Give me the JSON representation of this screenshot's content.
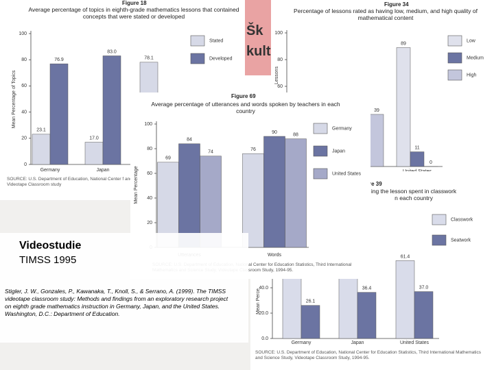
{
  "slide": {
    "heading": "Videostudie",
    "subheading": "TIMSS 1995",
    "citation": "Stigler, J. W., Gonzales, P., Kawanaka, T., Knoll, S., & Serrano, A. (1999). The TIMSS videotape classroom study: Methods and findings from an exploratory research project on eighth grade mathematics instruction in Germany, Japan, and the United States. Washington, D.C.: Department of Education.",
    "logo": [
      "Šk",
      "kult"
    ]
  },
  "chart_data": [
    {
      "type": "bar",
      "figure": "Figure 18",
      "title": "Average percentage of topics in eighth-grade mathematics lessons that contained concepts that were stated or developed",
      "y_label": "Mean Percentage of Topics",
      "categories": [
        "Germany",
        "Japan",
        null
      ],
      "series": [
        {
          "name": "Stated",
          "color": "#d6d9e7",
          "values": [
            23.1,
            17.0,
            78.1
          ],
          "value_labels": [
            "23.1",
            "17.0",
            "78.1"
          ]
        },
        {
          "name": "Developed",
          "color": "#6b74a2",
          "values": [
            76.9,
            83.0,
            null
          ],
          "value_labels": [
            "76.9",
            "83.0",
            null
          ]
        }
      ],
      "ylim": [
        0,
        100
      ],
      "yticks": [
        0,
        20,
        40,
        60,
        80,
        100
      ],
      "source": "SOURCE: U.S. Department of Education, National Center f and Science Study, Videotape Classroom study"
    },
    {
      "type": "bar",
      "figure": "Figure 34",
      "title": "Percentage of lessons rated as having low, medium, and high quality of mathematical content",
      "y_label": "Lessons",
      "categories": [
        null,
        "United States"
      ],
      "series": [
        {
          "name": "Low",
          "color": "#dfe1ec",
          "values": [
            null,
            89
          ]
        },
        {
          "name": "Medium",
          "color": "#6b74a2",
          "values": [
            null,
            11
          ]
        },
        {
          "name": "High",
          "color": "#c3c6dc",
          "values": [
            39,
            0
          ]
        }
      ],
      "ylim": [
        0,
        100
      ],
      "yticks": [
        60,
        80,
        100
      ]
    },
    {
      "type": "bar",
      "figure": "re 39",
      "title": "ing the lesson spent in classwork n each country",
      "y_label": "Mean Perce",
      "categories": [
        "Germany",
        "Japan",
        "United States"
      ],
      "series": [
        {
          "name": "Classwork",
          "color": "#d9dcea",
          "values": [
            73.9,
            63.6,
            61.4
          ],
          "value_labels": [
            null,
            null,
            "61.4"
          ]
        },
        {
          "name": "Seatwork",
          "color": "#6b74a2",
          "values": [
            26.1,
            36.4,
            37.0
          ],
          "value_labels": [
            "26.1",
            "36.4",
            "37.0"
          ]
        }
      ],
      "ylim": [
        0,
        100
      ],
      "yticks": [
        {
          "value": 0,
          "label": "0.0"
        },
        {
          "value": 20,
          "label": "20.0"
        },
        {
          "value": 40,
          "label": "40.0"
        }
      ],
      "source": "SOURCE: U.S. Department of Education, National Center for Education Statistics, Third International Mathematics and Science Study, Videotape Classroom Study, 1994-95."
    },
    {
      "type": "bar",
      "figure": "Figure 69",
      "title": "Average percentage of utterances and words spoken by teachers in each country",
      "y_label": "Mean Percentage",
      "categories": [
        "Utterances",
        "Words"
      ],
      "series": [
        {
          "name": "Germany",
          "color": "#d6d9e7",
          "values": [
            69,
            76
          ]
        },
        {
          "name": "Japan",
          "color": "#6b74a2",
          "values": [
            84,
            90
          ]
        },
        {
          "name": "United States",
          "color": "#a5a9c8",
          "values": [
            74,
            88
          ]
        }
      ],
      "ylim": [
        0,
        100
      ],
      "yticks": [
        0,
        20,
        40,
        60,
        80,
        100
      ],
      "source": "SOURCE: U.S. Department of Education, National Center for Education Statistics, Third International Mathematics and Science Study, Videotape Classroom Study, 1994-95."
    }
  ]
}
